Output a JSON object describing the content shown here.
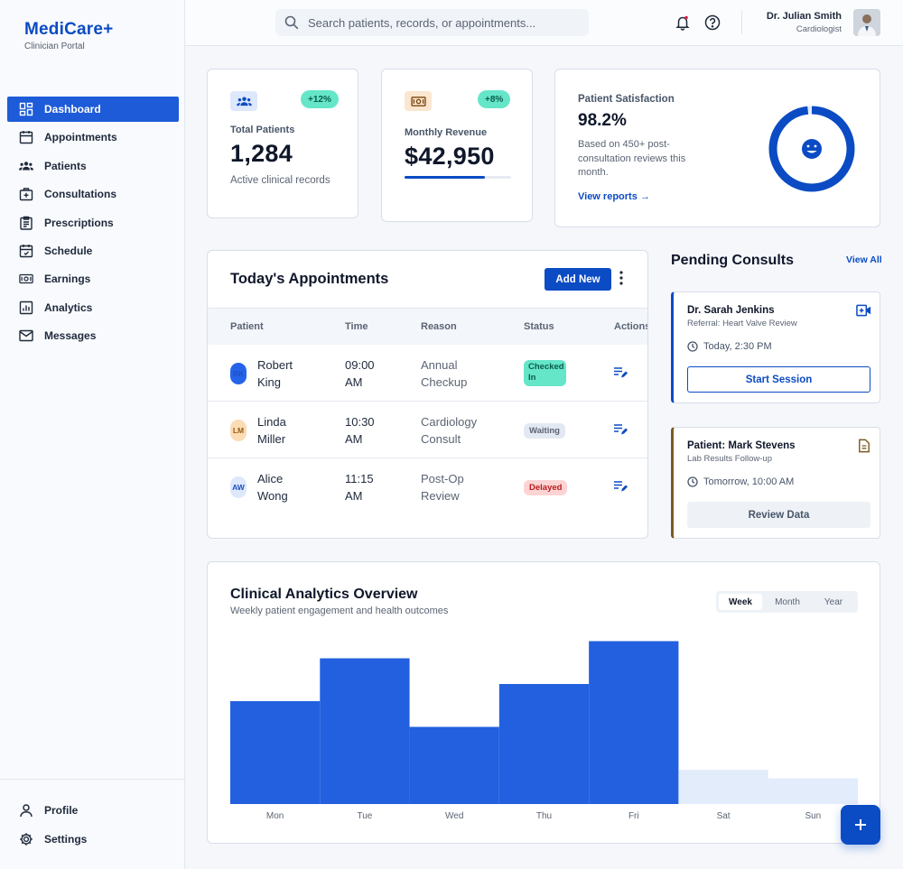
{
  "brand": {
    "name": "MediCare+",
    "subtitle": "Clinician Portal"
  },
  "sidebar": {
    "items": [
      {
        "label": "Dashboard",
        "icon": "dashboard-icon",
        "active": true
      },
      {
        "label": "Appointments",
        "icon": "calendar-icon"
      },
      {
        "label": "Patients",
        "icon": "users-icon"
      },
      {
        "label": "Consultations",
        "icon": "medical-case-icon"
      },
      {
        "label": "Prescriptions",
        "icon": "clipboard-icon"
      },
      {
        "label": "Schedule",
        "icon": "schedule-icon"
      },
      {
        "label": "Earnings",
        "icon": "cash-icon"
      },
      {
        "label": "Analytics",
        "icon": "bar-chart-icon"
      },
      {
        "label": "Messages",
        "icon": "mail-icon"
      }
    ],
    "bottom": [
      {
        "label": "Profile",
        "icon": "person-icon"
      },
      {
        "label": "Settings",
        "icon": "gear-icon"
      }
    ]
  },
  "topbar": {
    "search_placeholder": "Search patients, records, or appointments...",
    "user_name": "Dr. Julian Smith",
    "user_role": "Cardiologist"
  },
  "stats": {
    "patients": {
      "badge": "+12%",
      "label": "Total Patients",
      "value": "1,284",
      "note": "Active clinical records"
    },
    "revenue": {
      "badge": "+8%",
      "label": "Monthly Revenue",
      "value": "$42,950",
      "progress": 0.75
    },
    "satisfaction": {
      "label": "Patient Satisfaction",
      "value": "98.2%",
      "percent": 98.2,
      "description": "Based on 450+ post-consultation reviews this month.",
      "link": "View reports →"
    }
  },
  "appointments": {
    "title": "Today's Appointments",
    "add_label": "Add New",
    "columns": [
      "Patient",
      "Time",
      "Reason",
      "Status",
      "Actions"
    ],
    "rows": [
      {
        "initials": "RK",
        "first": "Robert",
        "last": "King",
        "time1": "09:00",
        "time2": "AM",
        "reason1": "Annual",
        "reason2": "Checkup",
        "status": "Checked In"
      },
      {
        "initials": "LM",
        "first": "Linda",
        "last": "Miller",
        "time1": "10:30",
        "time2": "AM",
        "reason1": "Cardiology",
        "reason2": "Consult",
        "status": "Waiting"
      },
      {
        "initials": "AW",
        "first": "Alice",
        "last": "Wong",
        "time1": "11:15",
        "time2": "AM",
        "reason1": "Post-Op",
        "reason2": "Review",
        "status": "Delayed"
      }
    ]
  },
  "pending": {
    "title": "Pending Consults",
    "view_all": "View All",
    "items": [
      {
        "name": "Dr. Sarah Jenkins",
        "sub": "Referral: Heart Valve Review",
        "time": "Today, 2:30 PM",
        "action": "Start Session",
        "accent": "#0b4bc4"
      },
      {
        "name": "Patient: Mark Stevens",
        "sub": "Lab Results Follow-up",
        "time": "Tomorrow, 10:00 AM",
        "action": "Review Data",
        "accent": "#7a5a1e"
      }
    ]
  },
  "analytics": {
    "title": "Clinical Analytics Overview",
    "subtitle": "Weekly patient engagement and health outcomes",
    "tabs": [
      "Week",
      "Month",
      "Year"
    ],
    "active_tab": "Week"
  },
  "chart_data": {
    "type": "bar",
    "categories": [
      "Mon",
      "Tue",
      "Wed",
      "Thu",
      "Fri",
      "Sat",
      "Sun"
    ],
    "values": [
      60,
      85,
      45,
      70,
      95,
      20,
      15
    ],
    "ylim": [
      0,
      100
    ],
    "colors": {
      "weekday": "#2260e0",
      "weekend": "#e3ecfb"
    },
    "grid": false
  }
}
